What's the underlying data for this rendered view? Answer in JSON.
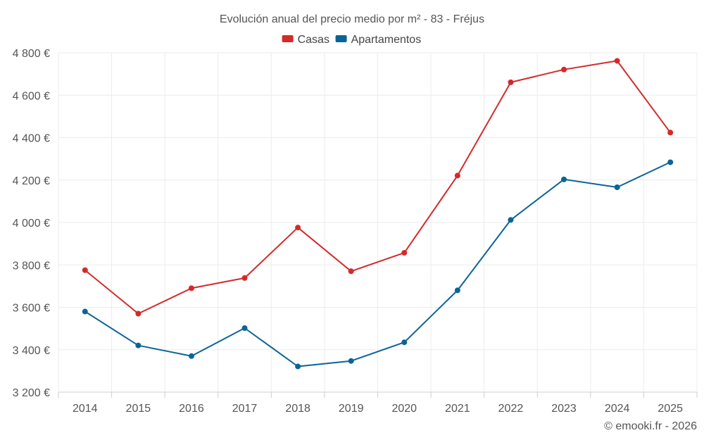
{
  "chart_data": {
    "type": "line",
    "title": "Evolución anual del precio medio por m² - 83 - Fréjus",
    "categories": [
      "2014",
      "2015",
      "2016",
      "2017",
      "2018",
      "2019",
      "2020",
      "2021",
      "2022",
      "2023",
      "2024",
      "2025"
    ],
    "series": [
      {
        "name": "Casas",
        "color": "#d42a2a",
        "values": [
          3775,
          3570,
          3690,
          3738,
          3976,
          3770,
          3857,
          4221,
          4661,
          4721,
          4762,
          4424
        ]
      },
      {
        "name": "Apartamentos",
        "color": "#0b6496",
        "values": [
          3580,
          3420,
          3370,
          3502,
          3321,
          3347,
          3435,
          3680,
          4012,
          4203,
          4166,
          4284
        ]
      }
    ],
    "ylim": [
      3200,
      4800
    ],
    "yticks": [
      3200,
      3400,
      3600,
      3800,
      4000,
      4200,
      4400,
      4600,
      4800
    ],
    "ytick_labels": [
      "3 200 €",
      "3 400 €",
      "3 600 €",
      "3 800 €",
      "4 000 €",
      "4 200 €",
      "4 400 €",
      "4 600 €",
      "4 800 €"
    ],
    "xlabel": "",
    "ylabel": "",
    "legend_position": "top-center",
    "grid": true
  },
  "credit": "© emooki.fr - 2026"
}
